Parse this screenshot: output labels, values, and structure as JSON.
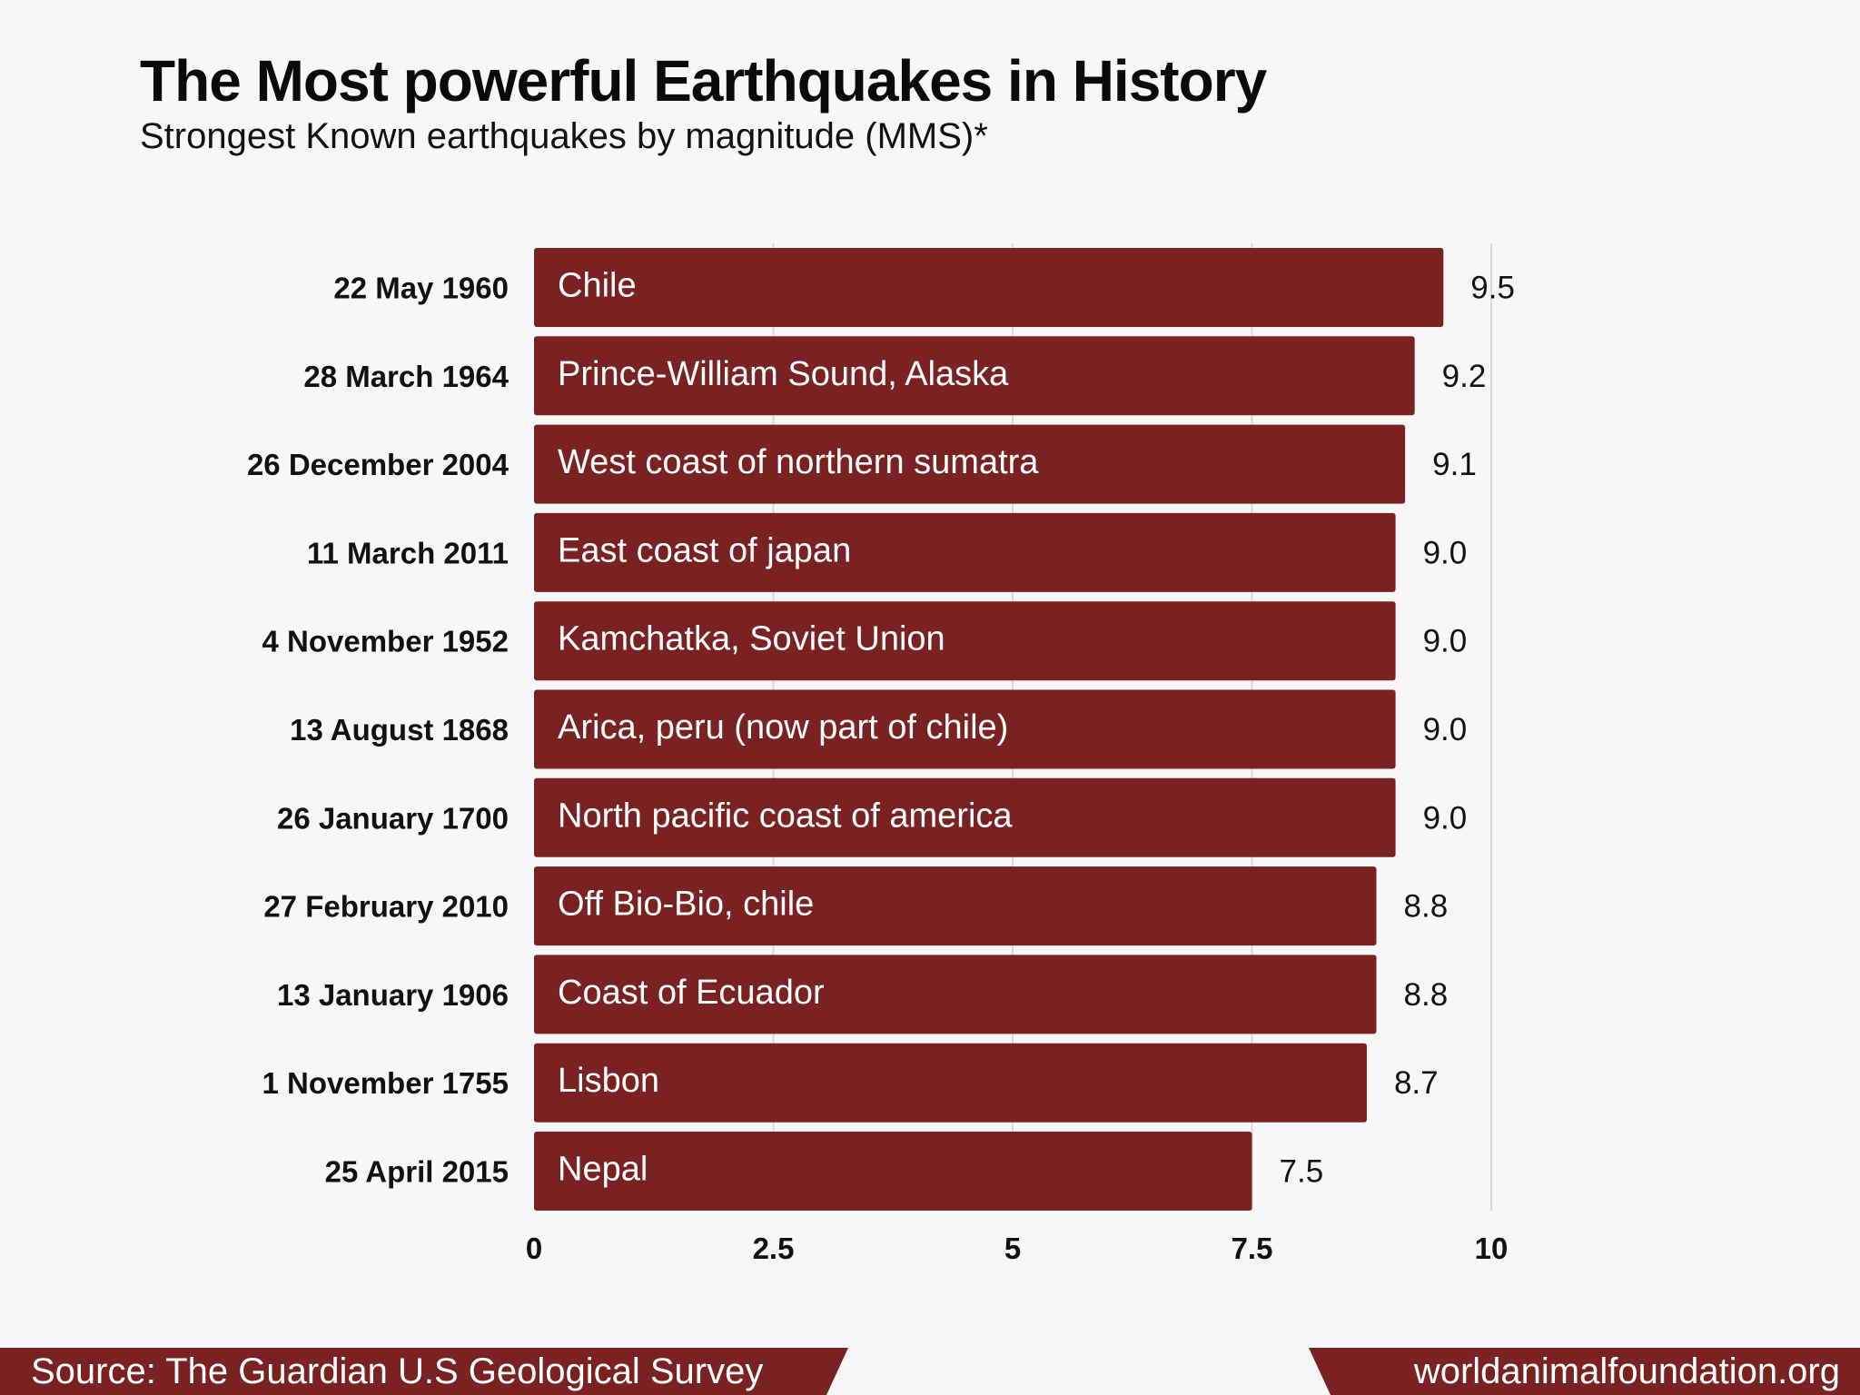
{
  "colors": {
    "bar": "#7a2222",
    "background": "#f7f7f7",
    "grid": "#d9d9d9",
    "text": "#111111"
  },
  "footer": {
    "source": "Source: The Guardian U.S Geological Survey",
    "site": "worldanimalfoundation.org"
  },
  "chart_data": {
    "type": "bar",
    "orientation": "horizontal",
    "title": "The Most powerful Earthquakes in History",
    "subtitle": "Strongest Known earthquakes by magnitude (MMS)*",
    "categories": [
      "22 May  1960",
      "28 March 1964",
      "26 December 2004",
      "11 March 2011",
      "4 November 1952",
      "13 August 1868",
      "26 January 1700",
      "27 February 2010",
      "13 January 1906",
      "1 November 1755",
      "25 April 2015"
    ],
    "bar_labels": [
      "Chile",
      "Prince-William Sound, Alaska",
      "West coast of northern sumatra",
      "East coast of japan",
      "Kamchatka, Soviet Union",
      "Arica, peru (now part of chile)",
      "North pacific coast of america",
      "Off Bio-Bio, chile",
      "Coast of Ecuador",
      "Lisbon",
      "Nepal"
    ],
    "values": [
      9.5,
      9.2,
      9.1,
      9.0,
      9.0,
      9.0,
      9.0,
      8.8,
      8.8,
      8.7,
      7.5
    ],
    "value_labels": [
      "9.5",
      "9.2",
      "9.1",
      "9.0",
      "9.0",
      "9.0",
      "9.0",
      "8.8",
      "8.8",
      "8.7",
      "7.5"
    ],
    "xlim": [
      0,
      10
    ],
    "xticks": [
      0,
      2.5,
      5,
      7.5,
      10
    ],
    "xtick_labels": [
      "0",
      "2.5",
      "5",
      "7.5",
      "10"
    ],
    "grid": "vertical",
    "xlabel": "",
    "ylabel": ""
  }
}
